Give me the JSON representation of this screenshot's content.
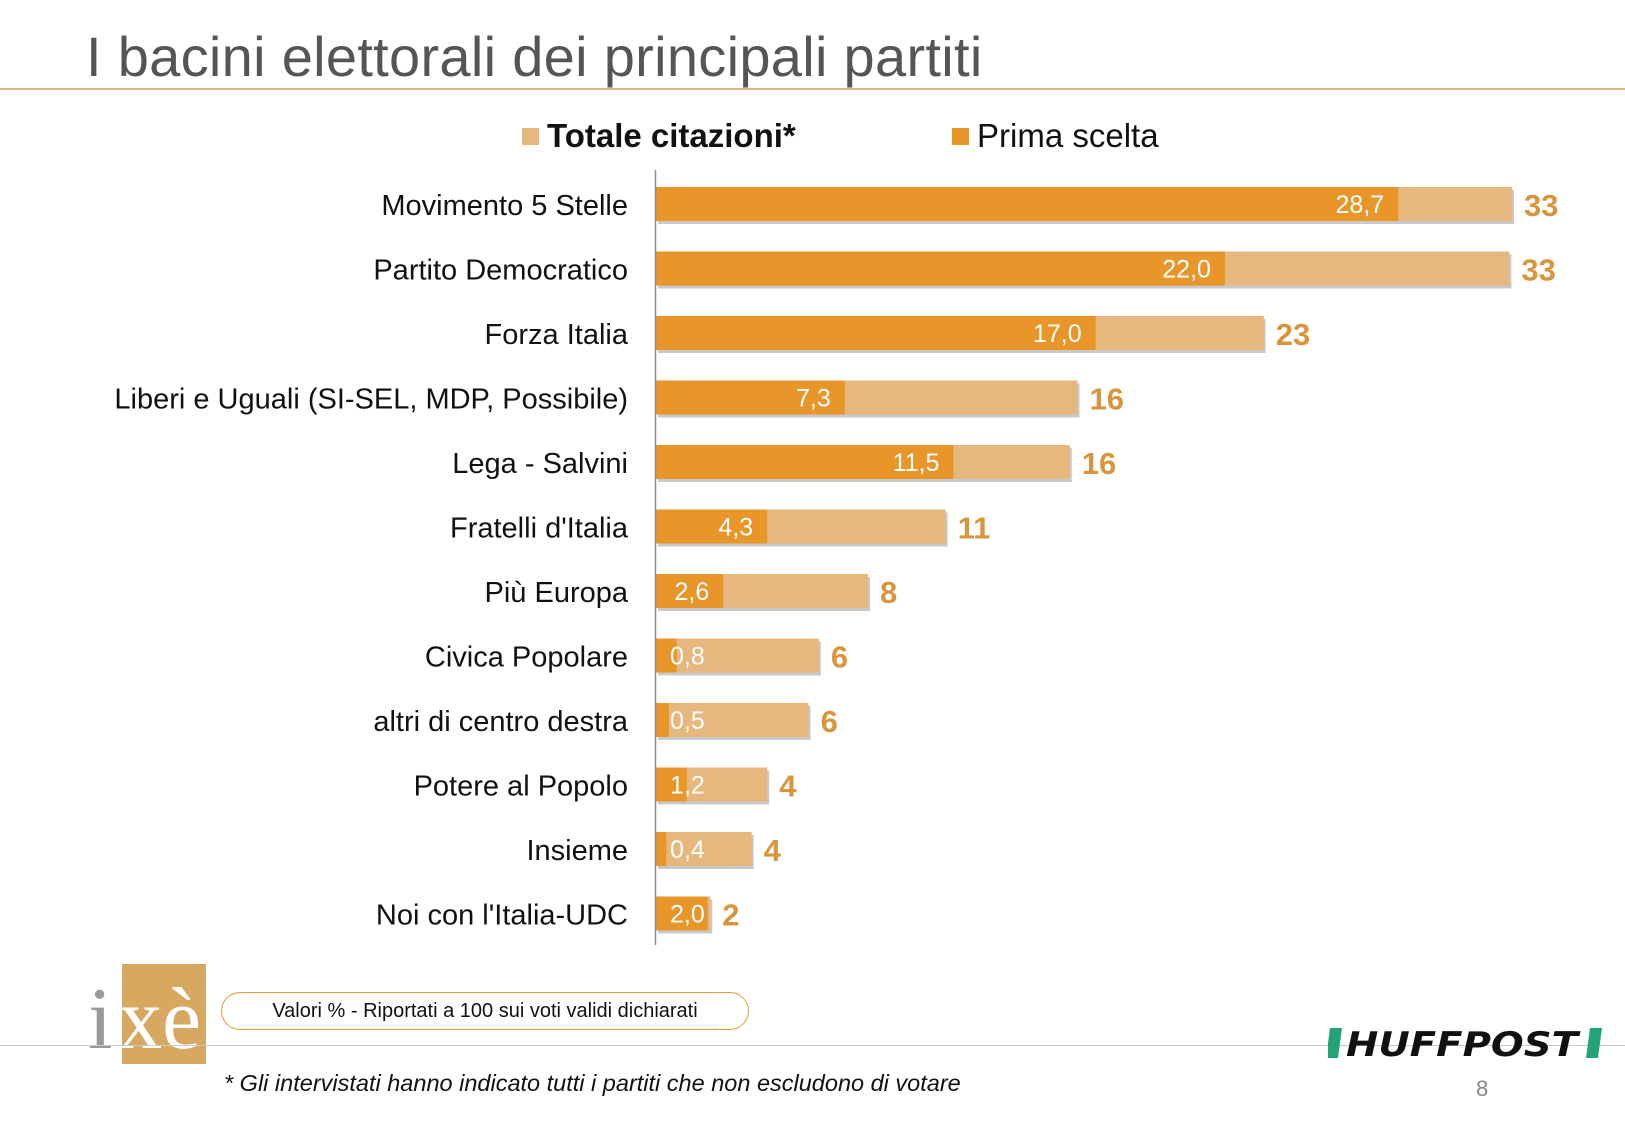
{
  "page": {
    "title": "I bacini elettorali dei principali partiti",
    "note_box": "Valori % - Riportati a 100 sui voti validi dichiarati",
    "footnote": "* Gli intervistati hanno indicato tutti i partiti che non escludono di votare",
    "page_number": "8",
    "logos": {
      "ixe": "ixè",
      "huffpost": "HUFFPOST"
    }
  },
  "chart_data": {
    "type": "bar",
    "orientation": "horizontal",
    "categories": [
      "Movimento 5 Stelle",
      "Partito Democratico",
      "Forza Italia",
      "Liberi e Uguali (SI-SEL, MDP, Possibile)",
      "Lega - Salvini",
      "Fratelli d'Italia",
      "Più Europa",
      "Civica Popolare",
      "altri di centro destra",
      "Potere al Popolo",
      "Insieme",
      "Noi con l'Italia-UDC"
    ],
    "series": [
      {
        "name": "Totale citazioni*",
        "color": "#e6b87e",
        "values": [
          33,
          33,
          23,
          16,
          16,
          11,
          8,
          6,
          6,
          4,
          4,
          2
        ],
        "labels": [
          "33",
          "33",
          "23",
          "16",
          "16",
          "11",
          "8",
          "6",
          "6",
          "4",
          "4",
          "2"
        ]
      },
      {
        "name": "Prima scelta",
        "color": "#e8952a",
        "values": [
          28.7,
          22.0,
          17.0,
          7.3,
          11.5,
          4.3,
          2.6,
          0.8,
          0.5,
          1.2,
          0.4,
          2.0
        ],
        "labels": [
          "28,7",
          "22,0",
          "17,0",
          "7,3",
          "11,5",
          "4,3",
          "2,6",
          "0,8",
          "0,5",
          "1,2",
          "0,4",
          "2,0"
        ]
      }
    ],
    "total_plot_values": [
      33.1,
      33.0,
      23.5,
      16.3,
      16.0,
      11.2,
      8.2,
      6.3,
      5.9,
      4.3,
      3.7,
      2.1
    ],
    "xlim": [
      0,
      35
    ],
    "legend_position": "top",
    "grid": false
  }
}
